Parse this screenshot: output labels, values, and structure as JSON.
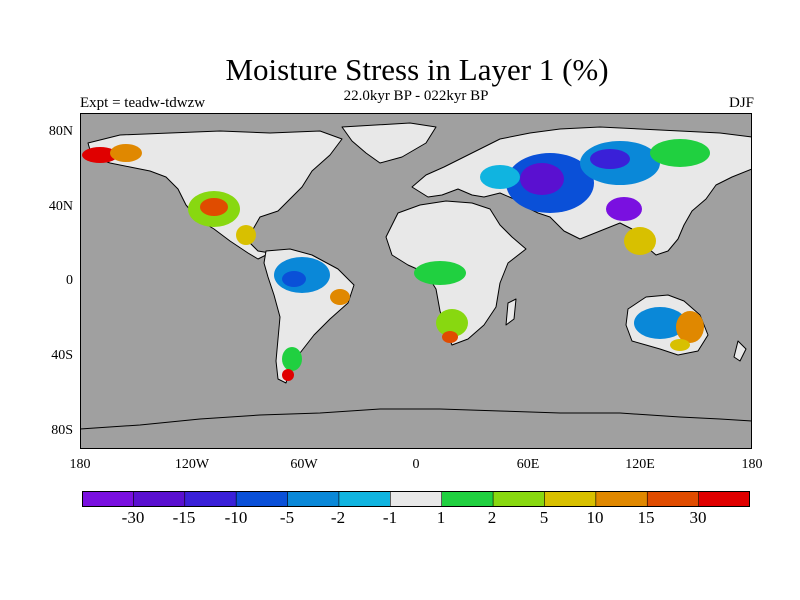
{
  "title": "Moisture Stress in Layer 1 (%)",
  "subtitle": "22.0kyr BP - 022kyr BP",
  "experiment": "Expt = teadw-tdwzw",
  "season": "DJF",
  "lat_ticks": [
    "80N",
    "40N",
    "0",
    "40S",
    "80S"
  ],
  "lon_ticks": [
    "180",
    "120W",
    "60W",
    "0",
    "60E",
    "120E",
    "180"
  ],
  "ocean_color": "#a0a0a0",
  "colorbar": {
    "colors": [
      "#7a10e0",
      "#5a10d0",
      "#3a20d8",
      "#0a50d8",
      "#0a88d8",
      "#10b4e0",
      "#e8e8e8",
      "#20d040",
      "#88d810",
      "#d8c000",
      "#e08800",
      "#e04c00",
      "#e00000"
    ],
    "labels": [
      "-30",
      "-15",
      "-10",
      "-5",
      "-2",
      "-1",
      "1",
      "2",
      "5",
      "10",
      "15",
      "30"
    ]
  }
}
